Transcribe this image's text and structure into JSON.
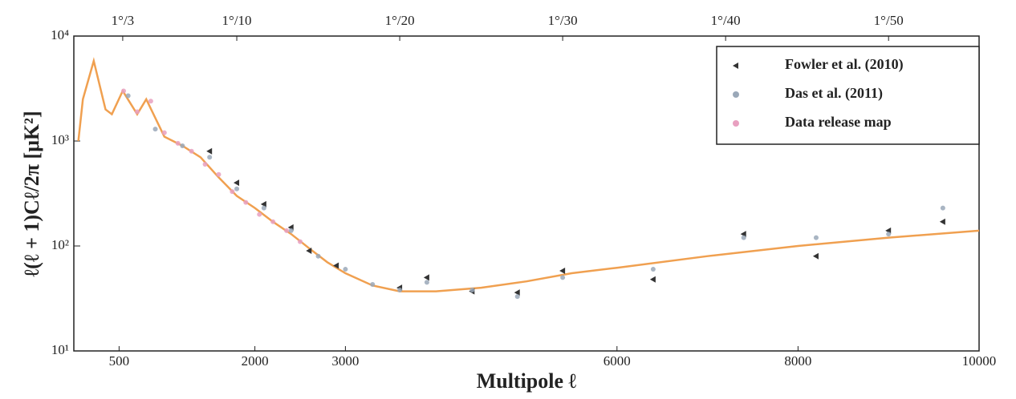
{
  "chart_data": {
    "type": "line",
    "x_label": "Multipole ℓ",
    "y_label": "ℓ(ℓ + 1)Cℓ/2π [μK²]",
    "xlim": [
      0,
      10000
    ],
    "xticks": [
      500,
      2000,
      3000,
      6000,
      8000,
      10000
    ],
    "top_ticks": [
      {
        "value": 540,
        "label": "1°/3"
      },
      {
        "value": 1800,
        "label": "1°/10"
      },
      {
        "value": 3600,
        "label": "1°/20"
      },
      {
        "value": 5400,
        "label": "1°/30"
      },
      {
        "value": 7200,
        "label": "1°/40"
      },
      {
        "value": 9000,
        "label": "1°/50"
      }
    ],
    "ylim": [
      10,
      10000
    ],
    "yscale": "log",
    "yticks": [
      {
        "value": 10,
        "label": "10¹"
      },
      {
        "value": 100,
        "label": "10²"
      },
      {
        "value": 1000,
        "label": "10³"
      },
      {
        "value": 10000,
        "label": "10⁴"
      }
    ],
    "legend": "upper right",
    "series": [
      {
        "mode": "line",
        "color": "#f0a050",
        "x": [
          50,
          100,
          220,
          350,
          420,
          540,
          700,
          800,
          1000,
          1200,
          1400,
          1600,
          1800,
          2000,
          2200,
          2400,
          2600,
          2800,
          3000,
          3300,
          3600,
          4000,
          4500,
          5000,
          5500,
          6000,
          7000,
          8000,
          9000,
          10000
        ],
        "values": [
          1000,
          2500,
          5800,
          2000,
          1800,
          3000,
          1800,
          2500,
          1100,
          900,
          700,
          450,
          300,
          230,
          170,
          130,
          95,
          70,
          55,
          42,
          37,
          37,
          40,
          46,
          55,
          62,
          80,
          100,
          120,
          140
        ]
      },
      {
        "name": "Fowler et al. (2010)",
        "mode": "markers",
        "marker": "triangle",
        "color": "#333333",
        "x": [
          1500,
          1800,
          2100,
          2400,
          2600,
          2900,
          3600,
          3900,
          4400,
          4900,
          5400,
          6400,
          7400,
          8200,
          9000,
          9600
        ],
        "values": [
          800,
          400,
          250,
          150,
          90,
          65,
          40,
          50,
          37,
          36,
          58,
          48,
          130,
          80,
          140,
          170
        ]
      },
      {
        "name": "Das et al. (2011)",
        "mode": "markers",
        "marker": "circle",
        "color": "#9aa8b8",
        "x": [
          600,
          900,
          1200,
          1500,
          1800,
          2100,
          2400,
          2700,
          3000,
          3300,
          3600,
          3900,
          4400,
          4900,
          5400,
          6400,
          7400,
          8200,
          9000,
          9600
        ],
        "values": [
          2700,
          1300,
          900,
          700,
          350,
          230,
          140,
          80,
          60,
          43,
          38,
          45,
          38,
          33,
          50,
          60,
          120,
          120,
          130,
          230
        ]
      },
      {
        "name": "Data release map",
        "mode": "markers",
        "marker": "circle",
        "color": "#e8a0c0",
        "x": [
          550,
          700,
          850,
          1000,
          1150,
          1300,
          1450,
          1600,
          1750,
          1900,
          2050,
          2200,
          2350,
          2500
        ],
        "values": [
          3000,
          1900,
          2400,
          1200,
          950,
          800,
          600,
          480,
          330,
          260,
          200,
          170,
          140,
          110
        ]
      }
    ]
  }
}
